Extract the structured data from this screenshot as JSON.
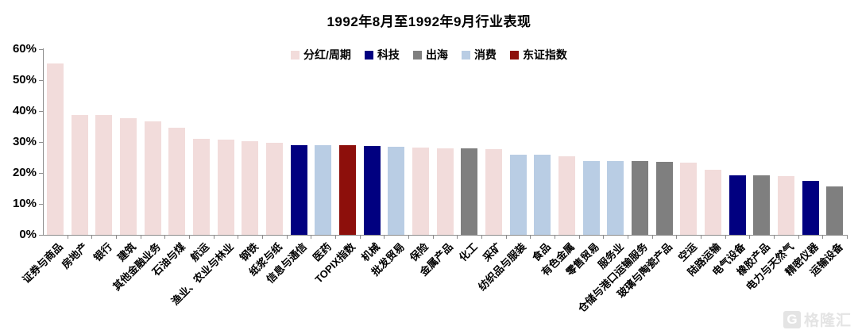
{
  "watermark": {
    "text": "格隆汇",
    "logo_letter": "G"
  },
  "chart_data": {
    "type": "bar",
    "title": "1992年8月至1992年9月行业表现",
    "xlabel": "",
    "ylabel": "",
    "ylim": [
      0,
      60
    ],
    "grid": false,
    "legend_position": "top-center",
    "yticks": [
      "60%",
      "50%",
      "40%",
      "30%",
      "20%",
      "10%",
      "0%"
    ],
    "legend": [
      {
        "label": "分红/周期",
        "color": "#F2DCDB"
      },
      {
        "label": "科技",
        "color": "#010080"
      },
      {
        "label": "出海",
        "color": "#7F7F7F"
      },
      {
        "label": "消费",
        "color": "#B9CDE4"
      },
      {
        "label": "东证指数",
        "color": "#8D0F0B"
      }
    ],
    "categories": [
      "证券与商品",
      "房地产",
      "银行",
      "建筑",
      "其他金融业务",
      "石油与煤",
      "航运",
      "渔业、农业与林业",
      "钢铁",
      "纸浆与纸",
      "信息与通信",
      "医药",
      "TOPIX指数",
      "机械",
      "批发贸易",
      "保险",
      "金属产品",
      "化工",
      "采矿",
      "纺织品与服装",
      "食品",
      "有色金属",
      "零售贸易",
      "服务业",
      "仓储与港口运输服务",
      "玻璃与陶瓷产品",
      "空运",
      "陆路运输",
      "电气设备",
      "橡胶产品",
      "电力与天然气",
      "精密仪器",
      "运输设备"
    ],
    "values": [
      55.5,
      38.8,
      38.6,
      37.8,
      36.6,
      34.5,
      31.0,
      30.7,
      30.2,
      29.7,
      29.0,
      28.9,
      29.0,
      28.8,
      28.5,
      28.1,
      28.0,
      28.0,
      27.8,
      25.9,
      25.8,
      25.5,
      23.9,
      23.8,
      23.8,
      23.6,
      23.4,
      21.0,
      19.3,
      19.2,
      18.9,
      17.5,
      15.7
    ],
    "groups": [
      "分红/周期",
      "分红/周期",
      "分红/周期",
      "分红/周期",
      "分红/周期",
      "分红/周期",
      "分红/周期",
      "分红/周期",
      "分红/周期",
      "分红/周期",
      "科技",
      "消费",
      "东证指数",
      "科技",
      "消费",
      "分红/周期",
      "分红/周期",
      "出海",
      "分红/周期",
      "消费",
      "消费",
      "分红/周期",
      "消费",
      "消费",
      "出海",
      "出海",
      "分红/周期",
      "分红/周期",
      "科技",
      "出海",
      "分红/周期",
      "科技",
      "出海"
    ]
  }
}
